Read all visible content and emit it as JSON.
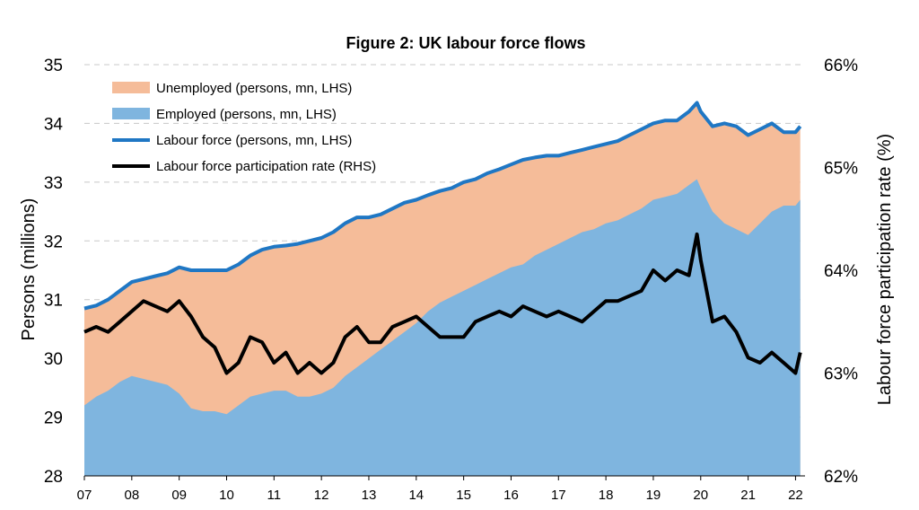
{
  "chart_data": {
    "type": "area",
    "title": "Figure 2: UK labour force flows",
    "ylabel_left": "Persons (millions)",
    "ylabel_right": "Labour force participation rate (%)",
    "ylim_left": [
      28,
      35
    ],
    "ylim_right": [
      62,
      66
    ],
    "yticks_left": [
      "28",
      "29",
      "30",
      "31",
      "32",
      "33",
      "34",
      "35"
    ],
    "yticks_right": [
      "62%",
      "63%",
      "64%",
      "65%",
      "66%"
    ],
    "xlim": [
      2007,
      2022.2
    ],
    "xticks": [
      "07",
      "08",
      "09",
      "10",
      "11",
      "12",
      "13",
      "14",
      "15",
      "16",
      "17",
      "18",
      "19",
      "20",
      "21",
      "22"
    ],
    "grid": true,
    "legend_position": "top-left",
    "colors": {
      "unemployed": "#f5bc99",
      "employed": "#7fb5df",
      "labour_force": "#1f77c4",
      "participation": "#000000"
    },
    "legend": [
      {
        "key": "unemployed",
        "label": "Unemployed (persons, mn, LHS)"
      },
      {
        "key": "employed",
        "label": "Employed (persons, mn, LHS)"
      },
      {
        "key": "labour_force",
        "label": "Labour force (persons, mn, LHS)"
      },
      {
        "key": "participation",
        "label": "Labour force participation rate (RHS)"
      }
    ],
    "series": [
      {
        "key": "labour_force",
        "name": "Labour force (persons, mn, LHS)",
        "axis": "left",
        "x": [
          2007.0,
          2007.25,
          2007.5,
          2007.75,
          2008.0,
          2008.25,
          2008.5,
          2008.75,
          2009.0,
          2009.25,
          2009.5,
          2009.75,
          2010.0,
          2010.25,
          2010.5,
          2010.75,
          2011.0,
          2011.25,
          2011.5,
          2011.75,
          2012.0,
          2012.25,
          2012.5,
          2012.75,
          2013.0,
          2013.25,
          2013.5,
          2013.75,
          2014.0,
          2014.25,
          2014.5,
          2014.75,
          2015.0,
          2015.25,
          2015.5,
          2015.75,
          2016.0,
          2016.25,
          2016.5,
          2016.75,
          2017.0,
          2017.25,
          2017.5,
          2017.75,
          2018.0,
          2018.25,
          2018.5,
          2018.75,
          2019.0,
          2019.25,
          2019.5,
          2019.75,
          2019.92,
          2020.0,
          2020.25,
          2020.5,
          2020.75,
          2021.0,
          2021.25,
          2021.5,
          2021.75,
          2022.0,
          2022.1
        ],
        "values": [
          30.85,
          30.9,
          31.0,
          31.15,
          31.3,
          31.35,
          31.4,
          31.45,
          31.55,
          31.5,
          31.5,
          31.5,
          31.5,
          31.6,
          31.75,
          31.85,
          31.9,
          31.92,
          31.95,
          32.0,
          32.05,
          32.15,
          32.3,
          32.4,
          32.4,
          32.45,
          32.55,
          32.65,
          32.7,
          32.78,
          32.85,
          32.9,
          33.0,
          33.05,
          33.15,
          33.22,
          33.3,
          33.38,
          33.42,
          33.45,
          33.45,
          33.5,
          33.55,
          33.6,
          33.65,
          33.7,
          33.8,
          33.9,
          34.0,
          34.05,
          34.05,
          34.2,
          34.35,
          34.2,
          33.95,
          34.0,
          33.95,
          33.8,
          33.9,
          34.0,
          33.85,
          33.85,
          33.95
        ]
      },
      {
        "key": "employed",
        "name": "Employed (persons, mn, LHS)",
        "axis": "left",
        "x": [
          2007.0,
          2007.25,
          2007.5,
          2007.75,
          2008.0,
          2008.25,
          2008.5,
          2008.75,
          2009.0,
          2009.25,
          2009.5,
          2009.75,
          2010.0,
          2010.25,
          2010.5,
          2010.75,
          2011.0,
          2011.25,
          2011.5,
          2011.75,
          2012.0,
          2012.25,
          2012.5,
          2012.75,
          2013.0,
          2013.25,
          2013.5,
          2013.75,
          2014.0,
          2014.25,
          2014.5,
          2014.75,
          2015.0,
          2015.25,
          2015.5,
          2015.75,
          2016.0,
          2016.25,
          2016.5,
          2016.75,
          2017.0,
          2017.25,
          2017.5,
          2017.75,
          2018.0,
          2018.25,
          2018.5,
          2018.75,
          2019.0,
          2019.25,
          2019.5,
          2019.75,
          2019.92,
          2020.0,
          2020.25,
          2020.5,
          2020.75,
          2021.0,
          2021.25,
          2021.5,
          2021.75,
          2022.0,
          2022.1
        ],
        "values": [
          29.2,
          29.35,
          29.45,
          29.6,
          29.7,
          29.65,
          29.6,
          29.55,
          29.4,
          29.15,
          29.1,
          29.1,
          29.05,
          29.2,
          29.35,
          29.4,
          29.45,
          29.45,
          29.35,
          29.35,
          29.4,
          29.5,
          29.7,
          29.85,
          30.0,
          30.15,
          30.3,
          30.45,
          30.6,
          30.8,
          30.95,
          31.05,
          31.15,
          31.25,
          31.35,
          31.45,
          31.55,
          31.6,
          31.75,
          31.85,
          31.95,
          32.05,
          32.15,
          32.2,
          32.3,
          32.35,
          32.45,
          32.55,
          32.7,
          32.75,
          32.8,
          32.95,
          33.05,
          32.9,
          32.5,
          32.3,
          32.2,
          32.1,
          32.3,
          32.5,
          32.6,
          32.6,
          32.7
        ]
      },
      {
        "key": "participation",
        "name": "Labour force participation rate (RHS)",
        "axis": "right",
        "x": [
          2007.0,
          2007.25,
          2007.5,
          2007.75,
          2008.0,
          2008.25,
          2008.5,
          2008.75,
          2009.0,
          2009.25,
          2009.5,
          2009.75,
          2010.0,
          2010.25,
          2010.5,
          2010.75,
          2011.0,
          2011.25,
          2011.5,
          2011.75,
          2012.0,
          2012.25,
          2012.5,
          2012.75,
          2013.0,
          2013.25,
          2013.5,
          2013.75,
          2014.0,
          2014.25,
          2014.5,
          2014.75,
          2015.0,
          2015.25,
          2015.5,
          2015.75,
          2016.0,
          2016.25,
          2016.5,
          2016.75,
          2017.0,
          2017.25,
          2017.5,
          2017.75,
          2018.0,
          2018.25,
          2018.5,
          2018.75,
          2019.0,
          2019.25,
          2019.5,
          2019.75,
          2019.92,
          2020.0,
          2020.25,
          2020.5,
          2020.75,
          2021.0,
          2021.25,
          2021.5,
          2021.75,
          2022.0,
          2022.1
        ],
        "values": [
          63.4,
          63.45,
          63.4,
          63.5,
          63.6,
          63.7,
          63.65,
          63.6,
          63.7,
          63.55,
          63.35,
          63.25,
          63.0,
          63.1,
          63.35,
          63.3,
          63.1,
          63.2,
          63.0,
          63.1,
          63.0,
          63.1,
          63.35,
          63.45,
          63.3,
          63.3,
          63.45,
          63.5,
          63.55,
          63.45,
          63.35,
          63.35,
          63.35,
          63.5,
          63.55,
          63.6,
          63.55,
          63.65,
          63.6,
          63.55,
          63.6,
          63.55,
          63.5,
          63.6,
          63.7,
          63.7,
          63.75,
          63.8,
          64.0,
          63.9,
          64.0,
          63.95,
          64.35,
          64.1,
          63.5,
          63.55,
          63.4,
          63.15,
          63.1,
          63.2,
          63.1,
          63.0,
          63.2
        ]
      }
    ]
  }
}
